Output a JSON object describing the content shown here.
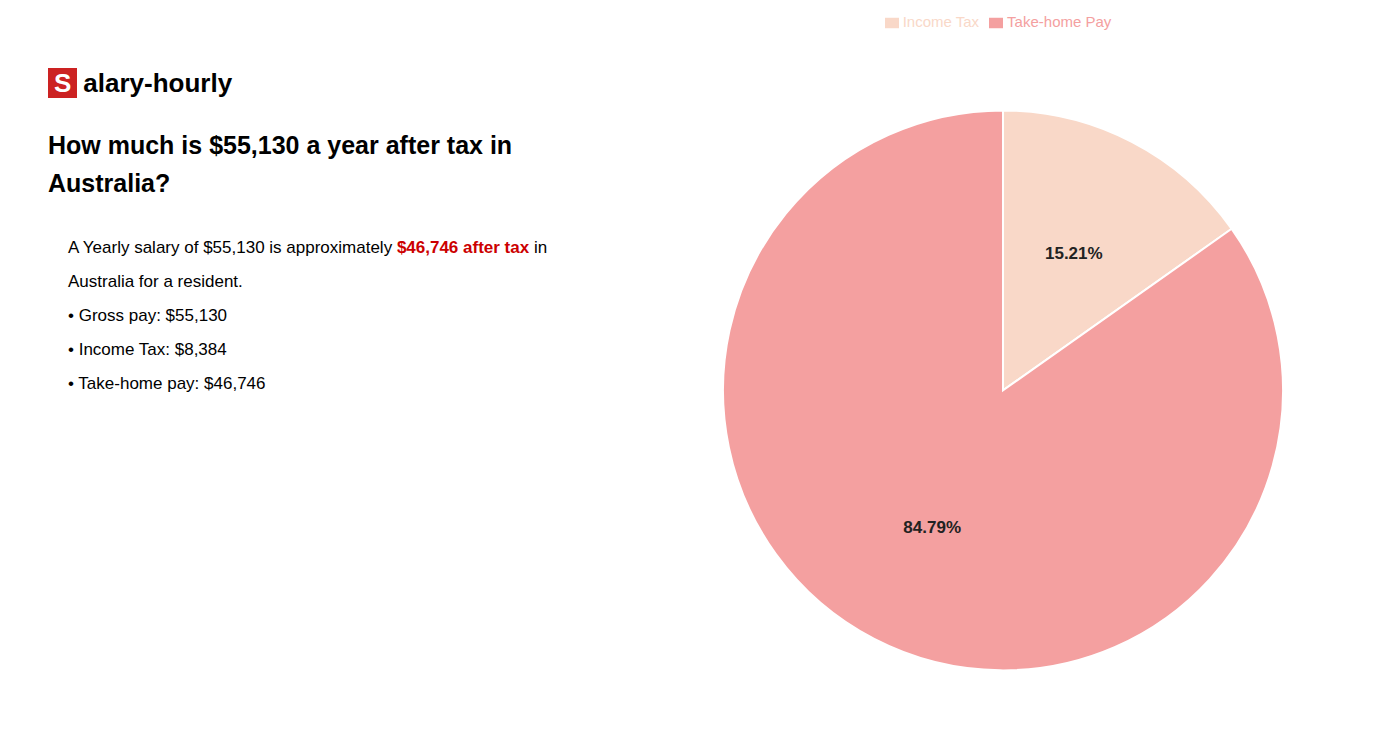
{
  "chart_data": {
    "type": "pie",
    "title": [
      "How much is $55,130 a year after tax in",
      "Australia?"
    ],
    "categories": [
      "Income Tax",
      "Take-home Pay"
    ],
    "values": [
      15.21,
      84.79
    ],
    "value_labels": [
      "15.21%",
      "84.79%"
    ],
    "colors": [
      "#f9d8c8",
      "#f4a0a0"
    ],
    "data_labels": true,
    "legend": "top",
    "annotations": [
      [
        {
          "text": "S",
          "color": "#ffffff",
          "background": "#cc2222"
        },
        {
          "text": "alary-hourly"
        }
      ],
      [
        {
          "text": "A Yearly salary of $55,130 is approximately "
        },
        {
          "text": "$46,746 after tax",
          "color": "#cc0000"
        },
        {
          "text": " in"
        }
      ],
      [
        {
          "text": "Australia for a resident."
        }
      ],
      [
        {
          "text": "• Gross pay: $55,130"
        }
      ],
      [
        {
          "text": "• Income Tax: $8,384"
        }
      ],
      [
        {
          "text": "• Take-home pay: $46,746"
        }
      ]
    ]
  }
}
